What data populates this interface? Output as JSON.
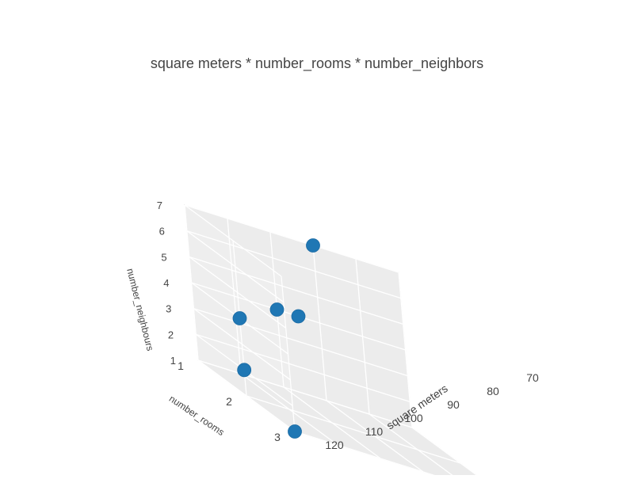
{
  "chart_data": {
    "type": "scatter3d",
    "title": "square meters * number_rooms * number_neighbors",
    "xlabel": "square meters",
    "ylabel": "number_rooms",
    "zlabel": "number_neighbours",
    "x_ticks": [
      "70",
      "80",
      "90",
      "100",
      "110",
      "120"
    ],
    "y_ticks": [
      "1",
      "2",
      "3"
    ],
    "z_ticks": [
      "1",
      "2",
      "3",
      "4",
      "5",
      "6",
      "7"
    ],
    "xlim": [
      70,
      120
    ],
    "ylim": [
      1,
      3
    ],
    "zlim": [
      1,
      7
    ],
    "grid": true,
    "marker_color": "#1f77b4",
    "points": [
      {
        "x": 90,
        "y": 1,
        "z": 7
      },
      {
        "x": 95,
        "y": 1,
        "z": 4
      },
      {
        "x": 100,
        "y": 1,
        "z": 4
      },
      {
        "x": 120,
        "y": 2,
        "z": 4
      },
      {
        "x": 120,
        "y": 2,
        "z": 2
      },
      {
        "x": 120,
        "y": 3,
        "z": 1
      }
    ]
  }
}
